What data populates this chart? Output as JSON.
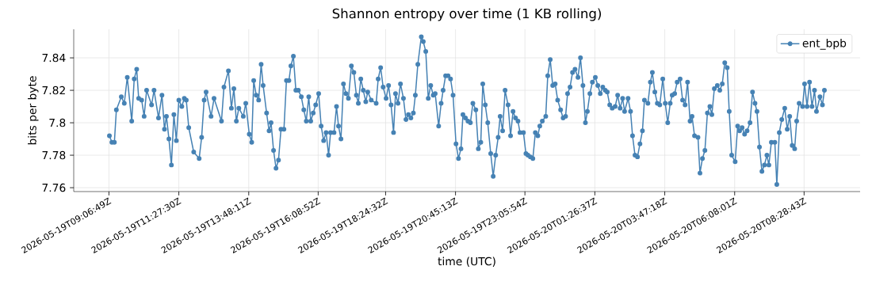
{
  "chart_data": {
    "type": "line",
    "title": "Shannon entropy over time (1 KB rolling)",
    "xlabel": "time (UTC)",
    "ylabel": "bits per byte",
    "x": [
      "2026-05-19T09:07",
      "2026-05-19T09:12",
      "2026-05-19T09:17",
      "2026-05-19T09:21",
      "2026-05-19T09:31",
      "2026-05-19T09:37",
      "2026-05-19T09:43",
      "2026-05-19T09:52",
      "2026-05-19T09:57",
      "2026-05-19T10:02",
      "2026-05-19T10:06",
      "2026-05-19T10:12",
      "2026-05-19T10:17",
      "2026-05-19T10:22",
      "2026-05-19T10:32",
      "2026-05-19T10:37",
      "2026-05-19T10:46",
      "2026-05-19T10:53",
      "2026-05-19T10:58",
      "2026-05-19T11:02",
      "2026-05-19T11:07",
      "2026-05-19T11:12",
      "2026-05-19T11:17",
      "2026-05-19T11:22",
      "2026-05-19T11:27",
      "2026-05-19T11:33",
      "2026-05-19T11:38",
      "2026-05-19T11:42",
      "2026-05-19T11:47",
      "2026-05-19T11:57",
      "2026-05-19T12:08",
      "2026-05-19T12:13",
      "2026-05-19T12:18",
      "2026-05-19T12:22",
      "2026-05-19T12:32",
      "2026-05-19T12:38",
      "2026-05-19T12:53",
      "2026-05-19T12:58",
      "2026-05-19T13:07",
      "2026-05-19T13:13",
      "2026-05-19T13:18",
      "2026-05-19T13:23",
      "2026-05-19T13:28",
      "2026-05-19T13:37",
      "2026-05-19T13:42",
      "2026-05-19T13:49",
      "2026-05-19T13:54",
      "2026-05-19T13:58",
      "2026-05-19T14:03",
      "2026-05-19T14:08",
      "2026-05-19T14:13",
      "2026-05-19T14:17",
      "2026-05-19T14:24",
      "2026-05-19T14:29",
      "2026-05-19T14:33",
      "2026-05-19T14:38",
      "2026-05-19T14:43",
      "2026-05-19T14:48",
      "2026-05-19T14:53",
      "2026-05-19T14:59",
      "2026-05-19T15:04",
      "2026-05-19T15:09",
      "2026-05-19T15:13",
      "2026-05-19T15:18",
      "2026-05-19T15:23",
      "2026-05-19T15:28",
      "2026-05-19T15:34",
      "2026-05-19T15:39",
      "2026-05-19T15:44",
      "2026-05-19T15:49",
      "2026-05-19T15:53",
      "2026-05-19T15:58",
      "2026-05-19T16:03",
      "2026-05-19T16:09",
      "2026-05-19T16:14",
      "2026-05-19T16:19",
      "2026-05-19T16:24",
      "2026-05-19T16:29",
      "2026-05-19T16:33",
      "2026-05-19T16:40",
      "2026-05-19T16:45",
      "2026-05-19T16:49",
      "2026-05-19T16:54",
      "2026-05-19T16:59",
      "2026-05-19T17:04",
      "2026-05-19T17:09",
      "2026-05-19T17:15",
      "2026-05-19T17:20",
      "2026-05-19T17:25",
      "2026-05-19T17:29",
      "2026-05-19T17:34",
      "2026-05-19T17:39",
      "2026-05-19T17:44",
      "2026-05-19T17:48",
      "2026-05-19T17:55",
      "2026-05-19T18:05",
      "2026-05-19T18:09",
      "2026-05-19T18:14",
      "2026-05-19T18:19",
      "2026-05-19T18:25",
      "2026-05-19T18:30",
      "2026-05-19T18:35",
      "2026-05-19T18:40",
      "2026-05-19T18:44",
      "2026-05-19T18:49",
      "2026-05-19T18:54",
      "2026-05-19T19:00",
      "2026-05-19T19:05",
      "2026-05-19T19:10",
      "2026-05-19T19:15",
      "2026-05-19T19:20",
      "2026-05-19T19:24",
      "2026-05-19T19:29",
      "2026-05-19T19:36",
      "2026-05-19T19:40",
      "2026-05-19T19:45",
      "2026-05-19T19:50",
      "2026-05-19T19:55",
      "2026-05-19T20:00",
      "2026-05-19T20:04",
      "2026-05-19T20:11",
      "2026-05-19T20:16",
      "2026-05-19T20:20",
      "2026-05-19T20:25",
      "2026-05-19T20:30",
      "2026-05-19T20:35",
      "2026-05-19T20:40",
      "2026-05-19T20:46",
      "2026-05-19T20:51",
      "2026-05-19T20:56",
      "2026-05-19T21:00",
      "2026-05-19T21:05",
      "2026-05-19T21:10",
      "2026-05-19T21:15",
      "2026-05-19T21:20",
      "2026-05-19T21:26",
      "2026-05-19T21:31",
      "2026-05-19T21:36",
      "2026-05-19T21:40",
      "2026-05-19T21:45",
      "2026-05-19T21:50",
      "2026-05-19T21:56",
      "2026-05-19T22:01",
      "2026-05-19T22:06",
      "2026-05-19T22:11",
      "2026-05-19T22:15",
      "2026-05-19T22:20",
      "2026-05-19T22:25",
      "2026-05-19T22:31",
      "2026-05-19T22:36",
      "2026-05-19T22:41",
      "2026-05-19T22:46",
      "2026-05-19T22:51",
      "2026-05-19T22:55",
      "2026-05-19T23:02",
      "2026-05-19T23:07",
      "2026-05-19T23:11",
      "2026-05-19T23:16",
      "2026-05-19T23:21",
      "2026-05-19T23:26",
      "2026-05-19T23:31",
      "2026-05-19T23:35",
      "2026-05-19T23:40",
      "2026-05-19T23:47",
      "2026-05-19T23:51",
      "2026-05-19T23:56",
      "2026-05-20T00:01",
      "2026-05-20T00:06",
      "2026-05-20T00:11",
      "2026-05-20T00:17",
      "2026-05-20T00:22",
      "2026-05-20T00:27",
      "2026-05-20T00:31",
      "2026-05-20T00:36",
      "2026-05-20T00:41",
      "2026-05-20T00:46",
      "2026-05-20T00:52",
      "2026-05-20T00:57",
      "2026-05-20T01:02",
      "2026-05-20T01:07",
      "2026-05-20T01:11",
      "2026-05-20T01:16",
      "2026-05-20T01:21",
      "2026-05-20T01:27",
      "2026-05-20T01:32",
      "2026-05-20T01:37",
      "2026-05-20T01:42",
      "2026-05-20T01:47",
      "2026-05-20T01:51",
      "2026-05-20T01:56",
      "2026-05-20T02:01",
      "2026-05-20T02:07",
      "2026-05-20T02:12",
      "2026-05-20T02:17",
      "2026-05-20T02:22",
      "2026-05-20T02:26",
      "2026-05-20T02:33",
      "2026-05-20T02:38",
      "2026-05-20T02:42",
      "2026-05-20T02:47",
      "2026-05-20T02:52",
      "2026-05-20T02:57",
      "2026-05-20T03:02",
      "2026-05-20T03:06",
      "2026-05-20T03:13",
      "2026-05-20T03:18",
      "2026-05-20T03:22",
      "2026-05-20T03:27",
      "2026-05-20T03:32",
      "2026-05-20T03:37",
      "2026-05-20T03:43",
      "2026-05-20T03:48",
      "2026-05-20T03:53",
      "2026-05-20T03:58",
      "2026-05-20T04:02",
      "2026-05-20T04:07",
      "2026-05-20T04:12",
      "2026-05-20T04:18",
      "2026-05-20T04:23",
      "2026-05-20T04:28",
      "2026-05-20T04:33",
      "2026-05-20T04:38",
      "2026-05-20T04:42",
      "2026-05-20T04:47",
      "2026-05-20T04:54",
      "2026-05-20T04:58",
      "2026-05-20T05:03",
      "2026-05-20T05:08",
      "2026-05-20T05:13",
      "2026-05-20T05:18",
      "2026-05-20T05:22",
      "2026-05-20T05:27",
      "2026-05-20T05:33",
      "2026-05-20T05:38",
      "2026-05-20T05:43",
      "2026-05-20T05:48",
      "2026-05-20T05:53",
      "2026-05-20T05:57",
      "2026-05-20T06:02",
      "2026-05-20T06:09",
      "2026-05-20T06:14",
      "2026-05-20T06:18",
      "2026-05-20T06:23",
      "2026-05-20T06:28",
      "2026-05-20T06:33",
      "2026-05-20T06:39",
      "2026-05-20T06:44",
      "2026-05-20T06:49",
      "2026-05-20T06:53",
      "2026-05-20T06:58",
      "2026-05-20T07:03",
      "2026-05-20T07:08",
      "2026-05-20T07:13",
      "2026-05-20T07:17",
      "2026-05-20T07:22",
      "2026-05-20T07:29",
      "2026-05-20T07:33",
      "2026-05-20T07:38",
      "2026-05-20T07:43",
      "2026-05-20T07:49",
      "2026-05-20T07:54",
      "2026-05-20T07:59",
      "2026-05-20T08:04",
      "2026-05-20T08:09",
      "2026-05-20T08:13",
      "2026-05-20T08:18",
      "2026-05-20T08:25",
      "2026-05-20T08:29",
      "2026-05-20T08:34",
      "2026-05-20T08:39",
      "2026-05-20T08:44",
      "2026-05-20T08:49",
      "2026-05-20T08:53",
      "2026-05-20T09:00",
      "2026-05-20T09:05",
      "2026-05-20T09:09"
    ],
    "series": [
      {
        "name": "ent_bpb",
        "color": "#4682b4",
        "values": [
          7.792,
          7.788,
          7.788,
          7.808,
          7.816,
          7.812,
          7.828,
          7.801,
          7.827,
          7.833,
          7.815,
          7.814,
          7.804,
          7.82,
          7.811,
          7.82,
          7.803,
          7.817,
          7.796,
          7.804,
          7.79,
          7.774,
          7.805,
          7.789,
          7.814,
          7.81,
          7.815,
          7.814,
          7.797,
          7.782,
          7.778,
          7.791,
          7.814,
          7.819,
          7.804,
          7.815,
          7.801,
          7.822,
          7.832,
          7.809,
          7.821,
          7.801,
          7.809,
          7.804,
          7.812,
          7.793,
          7.788,
          7.826,
          7.817,
          7.814,
          7.836,
          7.823,
          7.806,
          7.795,
          7.8,
          7.783,
          7.772,
          7.777,
          7.796,
          7.796,
          7.826,
          7.826,
          7.835,
          7.841,
          7.82,
          7.82,
          7.816,
          7.808,
          7.801,
          7.816,
          7.801,
          7.806,
          7.811,
          7.818,
          7.798,
          7.789,
          7.794,
          7.78,
          7.794,
          7.794,
          7.81,
          7.798,
          7.79,
          7.824,
          7.818,
          7.815,
          7.835,
          7.831,
          7.817,
          7.812,
          7.827,
          7.82,
          7.813,
          7.819,
          7.814,
          7.812,
          7.827,
          7.834,
          7.822,
          7.815,
          7.823,
          7.811,
          7.794,
          7.818,
          7.812,
          7.824,
          7.815,
          7.802,
          7.805,
          7.803,
          7.806,
          7.817,
          7.836,
          7.853,
          7.85,
          7.844,
          7.815,
          7.823,
          7.817,
          7.818,
          7.798,
          7.812,
          7.82,
          7.829,
          7.829,
          7.827,
          7.817,
          7.787,
          7.778,
          7.784,
          7.805,
          7.803,
          7.801,
          7.8,
          7.812,
          7.808,
          7.784,
          7.788,
          7.824,
          7.811,
          7.8,
          7.781,
          7.767,
          7.78,
          7.791,
          7.804,
          7.795,
          7.82,
          7.811,
          7.792,
          7.807,
          7.803,
          7.801,
          7.794,
          7.794,
          7.781,
          7.78,
          7.779,
          7.778,
          7.794,
          7.792,
          7.798,
          7.801,
          7.804,
          7.829,
          7.839,
          7.823,
          7.824,
          7.814,
          7.808,
          7.803,
          7.804,
          7.818,
          7.822,
          7.831,
          7.833,
          7.828,
          7.84,
          7.823,
          7.8,
          7.807,
          7.818,
          7.825,
          7.828,
          7.823,
          7.818,
          7.822,
          7.82,
          7.819,
          7.811,
          7.809,
          7.81,
          7.817,
          7.809,
          7.815,
          7.807,
          7.815,
          7.807,
          7.792,
          7.78,
          7.779,
          7.787,
          7.795,
          7.814,
          7.812,
          7.825,
          7.831,
          7.819,
          7.812,
          7.811,
          7.827,
          7.812,
          7.8,
          7.812,
          7.817,
          7.818,
          7.825,
          7.827,
          7.814,
          7.811,
          7.825,
          7.801,
          7.804,
          7.792,
          7.791,
          7.769,
          7.778,
          7.783,
          7.806,
          7.81,
          7.805,
          7.821,
          7.823,
          7.82,
          7.824,
          7.837,
          7.834,
          7.807,
          7.78,
          7.776,
          7.798,
          7.795,
          7.797,
          7.793,
          7.795,
          7.8,
          7.819,
          7.812,
          7.807,
          7.785,
          7.77,
          7.774,
          7.78,
          7.774,
          7.788,
          7.788,
          7.762,
          7.794,
          7.802,
          7.809,
          7.796,
          7.804,
          7.786,
          7.784,
          7.801,
          7.812,
          7.81,
          7.824,
          7.81,
          7.825,
          7.81,
          7.82,
          7.807,
          7.816,
          7.811,
          7.82
        ]
      }
    ],
    "xlim": [
      "2026-05-19T07:55",
      "2026-05-20T10:21"
    ],
    "ylim": [
      7.7576,
      7.8576
    ],
    "xticks": [
      {
        "value": "2026-05-19T09:06",
        "label": "2026-05-19T09:06:49Z"
      },
      {
        "value": "2026-05-19T11:27",
        "label": "2026-05-19T11:27:30Z"
      },
      {
        "value": "2026-05-19T13:48",
        "label": "2026-05-19T13:48:11Z"
      },
      {
        "value": "2026-05-19T16:08",
        "label": "2026-05-19T16:08:52Z"
      },
      {
        "value": "2026-05-19T18:24",
        "label": "2026-05-19T18:24:32Z"
      },
      {
        "value": "2026-05-19T20:45",
        "label": "2026-05-19T20:45:13Z"
      },
      {
        "value": "2026-05-19T23:05",
        "label": "2026-05-19T23:05:54Z"
      },
      {
        "value": "2026-05-20T01:26",
        "label": "2026-05-20T01:26:37Z"
      },
      {
        "value": "2026-05-20T03:47",
        "label": "2026-05-20T03:47:18Z"
      },
      {
        "value": "2026-05-20T06:08",
        "label": "2026-05-20T06:08:01Z"
      },
      {
        "value": "2026-05-20T08:28",
        "label": "2026-05-20T08:28:43Z"
      }
    ],
    "yticks": [
      7.76,
      7.78,
      7.8,
      7.82,
      7.84
    ],
    "grid": true,
    "legend": "top right",
    "marker": "circle"
  }
}
